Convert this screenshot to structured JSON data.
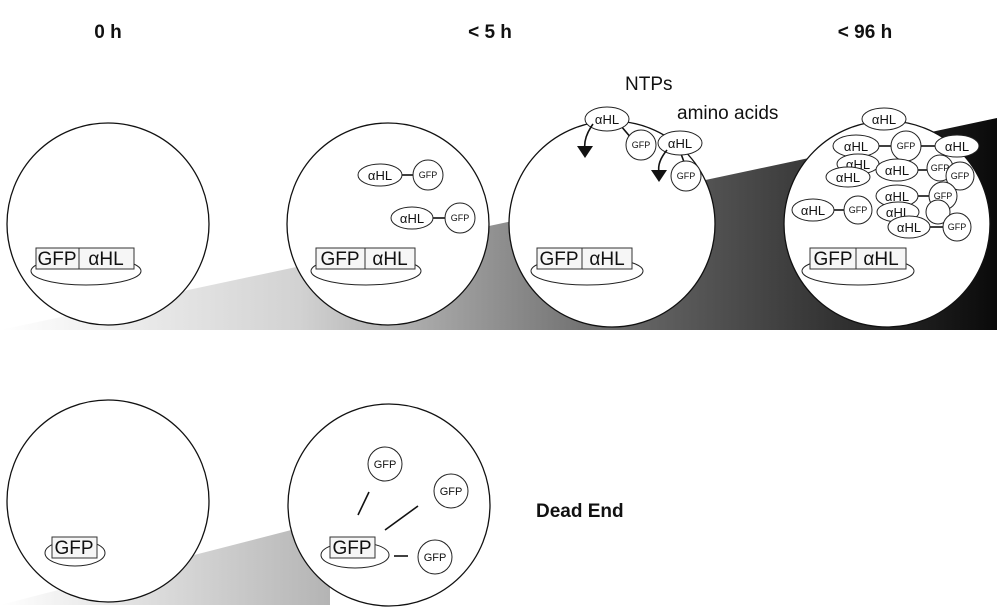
{
  "headers": {
    "t0": "0 h",
    "t5": "< 5 h",
    "t96": "< 96 h"
  },
  "labels": {
    "ntps": "NTPs",
    "amino_acids": "amino acids",
    "dead_end": "Dead End"
  },
  "construct": {
    "gfp": "GFP",
    "ahl": "αHL"
  },
  "protein": {
    "ahl": "αHL",
    "gfp": "GFP"
  },
  "colors": {
    "gradient_light": "#ffffff",
    "gradient_dark": "#0a0a0a",
    "outline": "#111111"
  }
}
